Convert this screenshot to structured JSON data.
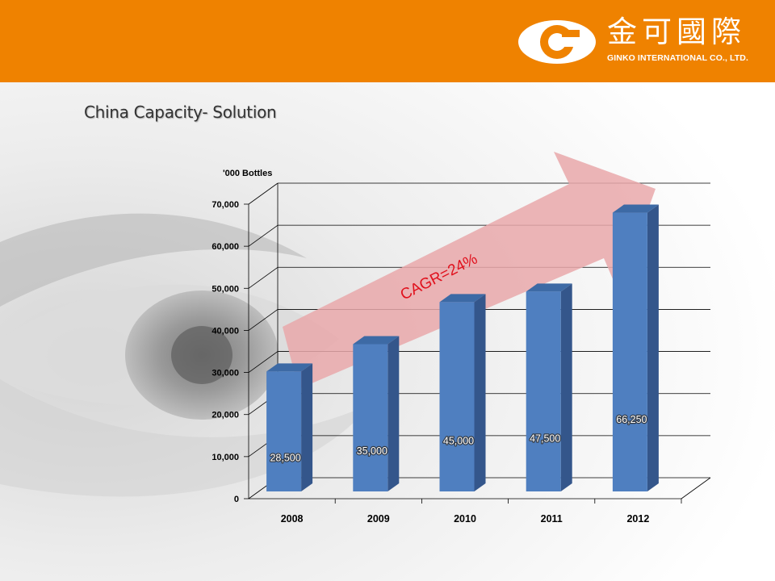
{
  "header": {
    "company_name_cn": "金可國際",
    "company_name_en": "GINKO INTERNATIONAL CO., LTD."
  },
  "page": {
    "title": "China Capacity- Solution"
  },
  "colors": {
    "header_bg": "#ef8200",
    "bar_front": "#4f7fc0",
    "bar_side": "#34568b",
    "bar_top": "#3d6aa5",
    "arrow": "#e9a8aa",
    "cagr_text": "#e0101c"
  },
  "chart_data": {
    "type": "bar",
    "style": "3d-column",
    "unit_label": "'000 Bottles",
    "categories": [
      "2008",
      "2009",
      "2010",
      "2011",
      "2012"
    ],
    "values": [
      28500,
      35000,
      45000,
      47500,
      66250
    ],
    "data_labels": [
      "28,500",
      "35,000",
      "45,000",
      "47,500",
      "66,250"
    ],
    "ylim": [
      0,
      70000
    ],
    "y_ticks": [
      0,
      10000,
      20000,
      30000,
      40000,
      50000,
      60000,
      70000
    ],
    "y_tick_labels": [
      "0",
      "10,000",
      "20,000",
      "30,000",
      "40,000",
      "50,000",
      "60,000",
      "70,000"
    ],
    "grid": true,
    "legend": "none",
    "annotation": {
      "text": "CAGR=24%",
      "shape": "upward-arrow"
    }
  }
}
